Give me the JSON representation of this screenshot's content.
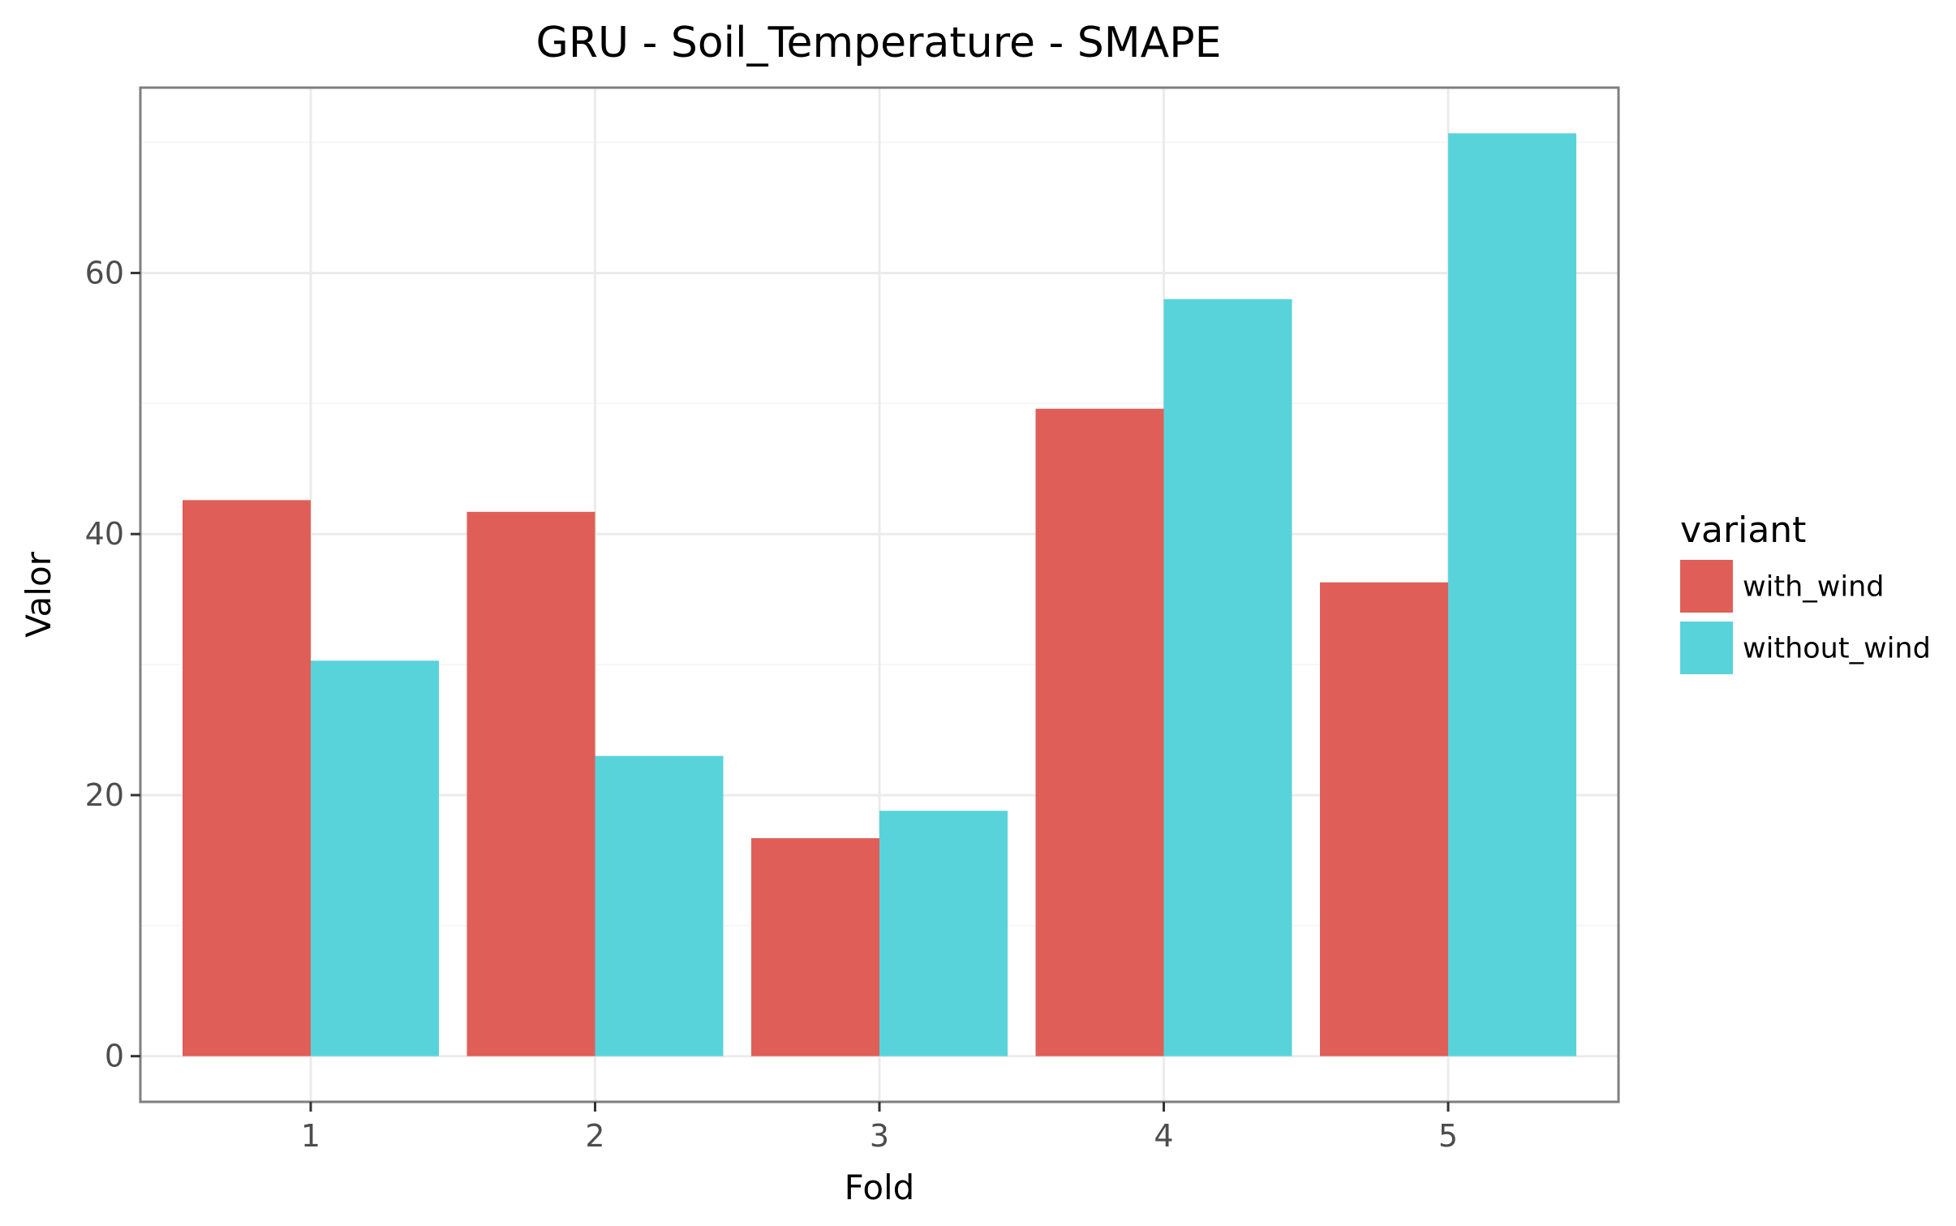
{
  "chart_data": {
    "type": "bar",
    "title": "GRU - Soil_Temperature - SMAPE",
    "xlabel": "Fold",
    "ylabel": "Valor",
    "categories": [
      "1",
      "2",
      "3",
      "4",
      "5"
    ],
    "series": [
      {
        "name": "with_wind",
        "color": "#df5f58",
        "values": [
          42.6,
          41.7,
          16.7,
          49.6,
          36.3
        ]
      },
      {
        "name": "without_wind",
        "color": "#59d3da",
        "values": [
          30.3,
          23.0,
          18.8,
          58.0,
          70.7
        ]
      }
    ],
    "ylim": [
      -3.5,
      74.2
    ],
    "yticks": [
      0,
      20,
      40,
      60
    ],
    "grid": true,
    "legend": {
      "title": "variant",
      "placement": "right"
    }
  }
}
